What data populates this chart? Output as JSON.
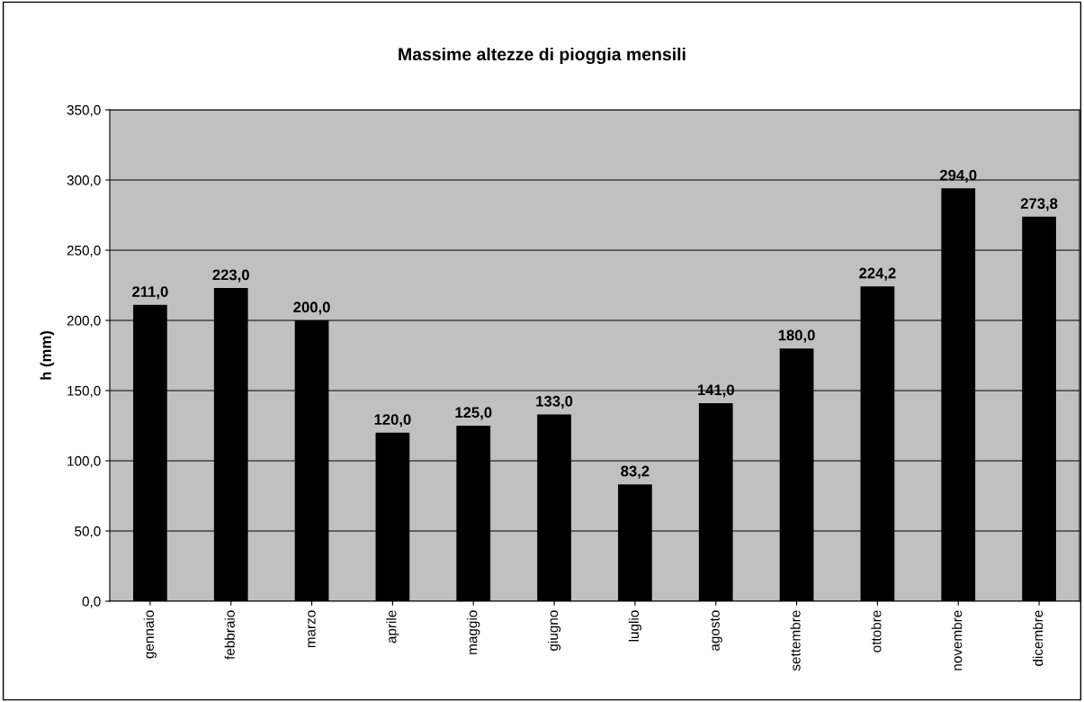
{
  "chart_data": {
    "type": "bar",
    "title": "Massime altezze di pioggia mensili",
    "ylabel": "h (mm)",
    "categories": [
      "gennaio",
      "febbraio",
      "marzo",
      "aprile",
      "maggio",
      "giugno",
      "luglio",
      "agosto",
      "settembre",
      "ottobre",
      "novembre",
      "dicembre"
    ],
    "values": [
      211.0,
      223.0,
      200.0,
      120.0,
      125.0,
      133.0,
      83.2,
      141.0,
      180.0,
      224.2,
      294.0,
      273.8
    ],
    "value_labels": [
      "211,0",
      "223,0",
      "200,0",
      "120,0",
      "125,0",
      "133,0",
      "83,2",
      "141,0",
      "180,0",
      "224,2",
      "294,0",
      "273,8"
    ],
    "color": "#000000",
    "ylim": [
      0,
      350
    ],
    "yticks": [
      {
        "value": 0,
        "label": "0,0"
      },
      {
        "value": 50,
        "label": "50,0"
      },
      {
        "value": 100,
        "label": "100,0"
      },
      {
        "value": 150,
        "label": "150,0"
      },
      {
        "value": 200,
        "label": "200,0"
      },
      {
        "value": 250,
        "label": "250,0"
      },
      {
        "value": 300,
        "label": "300,0"
      },
      {
        "value": 350,
        "label": "350,0"
      }
    ],
    "grid": "y",
    "legend": false
  }
}
